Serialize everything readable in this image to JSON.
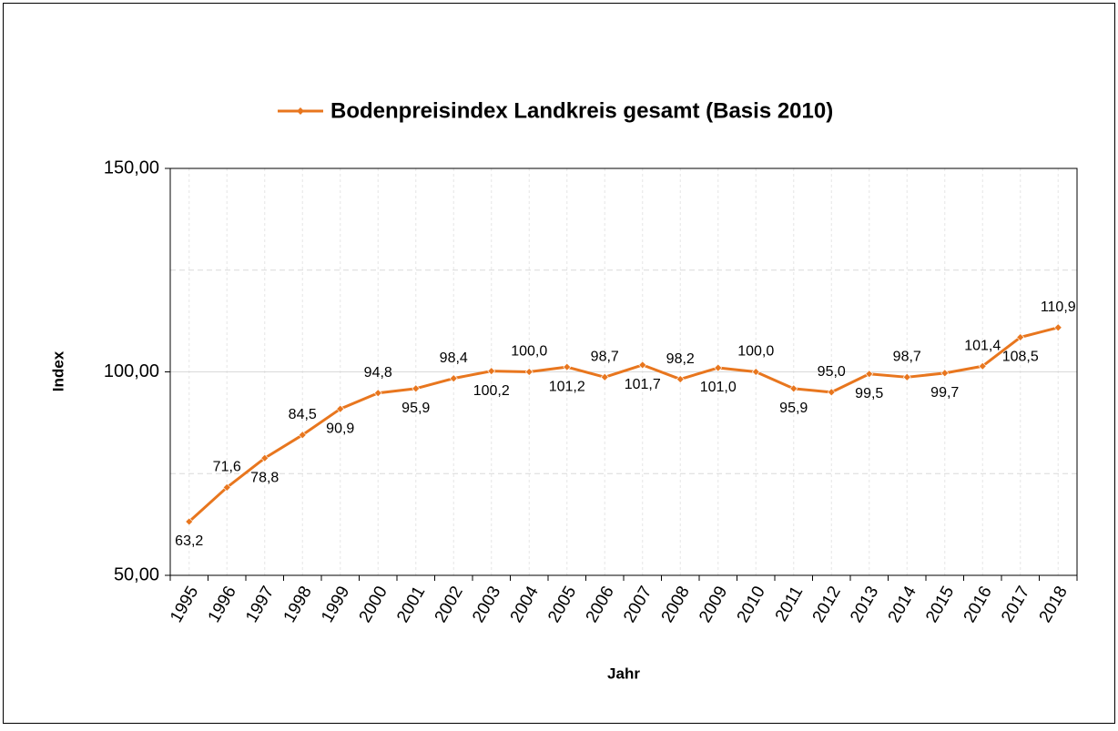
{
  "chart_data": {
    "type": "line",
    "x_label": "Jahr",
    "y_label": "Index",
    "categories": [
      "1995",
      "1996",
      "1997",
      "1998",
      "1999",
      "2000",
      "2001",
      "2002",
      "2003",
      "2004",
      "2005",
      "2006",
      "2007",
      "2008",
      "2009",
      "2010",
      "2011",
      "2012",
      "2013",
      "2014",
      "2015",
      "2016",
      "2017",
      "2018"
    ],
    "series": [
      {
        "name": "Bodenpreisindex Landkreis gesamt (Basis 2010)",
        "color": "#e8761e",
        "values": [
          63.2,
          71.6,
          78.8,
          84.5,
          90.9,
          94.8,
          95.9,
          98.4,
          100.2,
          100.0,
          101.2,
          98.7,
          101.7,
          98.2,
          101.0,
          100.0,
          95.9,
          95.0,
          99.5,
          98.7,
          99.7,
          101.4,
          108.5,
          110.9
        ],
        "value_labels": [
          "63,2",
          "71,6",
          "78,8",
          "84,5",
          "90,9",
          "94,8",
          "95,9",
          "98,4",
          "100,2",
          "100,0",
          "101,2",
          "98,7",
          "101,7",
          "98,2",
          "101,0",
          "100,0",
          "95,9",
          "95,0",
          "99,5",
          "98,7",
          "99,7",
          "101,4",
          "108,5",
          "110,9"
        ]
      }
    ],
    "ylim": [
      50,
      150
    ],
    "yticks": [
      {
        "value": 50,
        "label": "50,00"
      },
      {
        "value": 100,
        "label": "100,00"
      },
      {
        "value": 150,
        "label": "150,00"
      }
    ],
    "yminorticks": [
      75,
      125
    ],
    "grid": true,
    "legend": "top"
  }
}
